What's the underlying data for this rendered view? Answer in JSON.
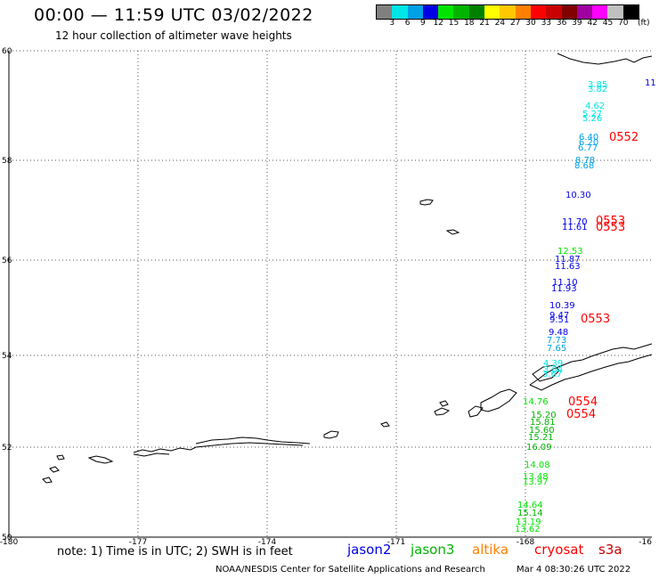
{
  "header": {
    "title": "00:00 — 11:59 UTC 03/02/2022",
    "subtitle": "12 hour collection of altimeter wave heights"
  },
  "colorbar": {
    "colors": [
      "#808080",
      "#00e5e5",
      "#00a0e5",
      "#0000e5",
      "#00e500",
      "#00b400",
      "#008000",
      "#ffff00",
      "#ffc800",
      "#ff8000",
      "#ff0000",
      "#c80000",
      "#800000",
      "#a000a0",
      "#ff00ff",
      "#c0c0c0",
      "#000000"
    ],
    "labels": [
      "3",
      "6",
      "9",
      "12",
      "15",
      "18",
      "21",
      "24",
      "27",
      "30",
      "33",
      "36",
      "39",
      "42",
      "45",
      "70"
    ],
    "unit": "(ft)"
  },
  "axes": {
    "lat_ticks": [
      "60",
      "58",
      "56",
      "54",
      "52",
      "50"
    ],
    "lon_ticks": [
      "-180",
      "-177",
      "-174",
      "-171",
      "-168",
      "-16"
    ]
  },
  "observations": [
    {
      "v": "3.85",
      "c": "#00e5e5"
    },
    {
      "v": "3.82",
      "c": "#00e5e5"
    },
    {
      "v": "4.62",
      "c": "#00e5e5"
    },
    {
      "v": "5.27",
      "c": "#00e5e5"
    },
    {
      "v": "5.26",
      "c": "#00e5e5"
    },
    {
      "v": "6.40",
      "c": "#00a0e5"
    },
    {
      "v": "6.20",
      "c": "#00a0e5"
    },
    {
      "v": "6.77",
      "c": "#00a0e5"
    },
    {
      "v": "8.78",
      "c": "#00a0e5"
    },
    {
      "v": "8.68",
      "c": "#00a0e5"
    },
    {
      "v": "10.30",
      "c": "#0000e5"
    },
    {
      "v": "11.70",
      "c": "#0000e5"
    },
    {
      "v": "11.61",
      "c": "#0000e5"
    },
    {
      "v": "12.53",
      "c": "#00e500"
    },
    {
      "v": "11.87",
      "c": "#0000e5"
    },
    {
      "v": "11.63",
      "c": "#0000e5"
    },
    {
      "v": "11.10",
      "c": "#0000e5"
    },
    {
      "v": "11.93",
      "c": "#0000e5"
    },
    {
      "v": "10.39",
      "c": "#0000e5"
    },
    {
      "v": "9.47",
      "c": "#0000e5"
    },
    {
      "v": "9.51",
      "c": "#0000e5"
    },
    {
      "v": "9.48",
      "c": "#0000e5"
    },
    {
      "v": "7.73",
      "c": "#00a0e5"
    },
    {
      "v": "7.65",
      "c": "#00a0e5"
    },
    {
      "v": "4.39",
      "c": "#00e5e5"
    },
    {
      "v": "3.84",
      "c": "#00e5e5"
    },
    {
      "v": "3.67",
      "c": "#00e5e5"
    },
    {
      "v": "14.76",
      "c": "#00e500"
    },
    {
      "v": "15.20",
      "c": "#00b400"
    },
    {
      "v": "15.81",
      "c": "#00b400"
    },
    {
      "v": "15.60",
      "c": "#00b400"
    },
    {
      "v": "15.21",
      "c": "#00b400"
    },
    {
      "v": "16.09",
      "c": "#00b400"
    },
    {
      "v": "14.08",
      "c": "#00e500"
    },
    {
      "v": "13.48",
      "c": "#00e500"
    },
    {
      "v": "13.97",
      "c": "#00e500"
    },
    {
      "v": "14.64",
      "c": "#00e500"
    },
    {
      "v": "15.14",
      "c": "#00b400"
    },
    {
      "v": "13.19",
      "c": "#00e500"
    },
    {
      "v": "13.62",
      "c": "#00e500"
    },
    {
      "v": "11",
      "c": "#0000e5"
    }
  ],
  "time_labels": [
    "0552",
    "0553",
    "0553",
    "0553",
    "0554",
    "0554"
  ],
  "time_color": "#ff0000",
  "footer": {
    "note": "note: 1) Time is in UTC; 2) SWH is in feet",
    "legend": [
      {
        "name": "jason2",
        "color": "#0000e5"
      },
      {
        "name": "jason3",
        "color": "#00b400"
      },
      {
        "name": "altika",
        "color": "#ff8000"
      },
      {
        "name": "cryosat",
        "color": "#ff0000"
      },
      {
        "name": "s3a",
        "color": "#c80000"
      }
    ],
    "credit": "NOAA/NESDIS Center for Satellite Applications and Research",
    "date": "Mar  4 08:30:26 UTC 2022"
  }
}
